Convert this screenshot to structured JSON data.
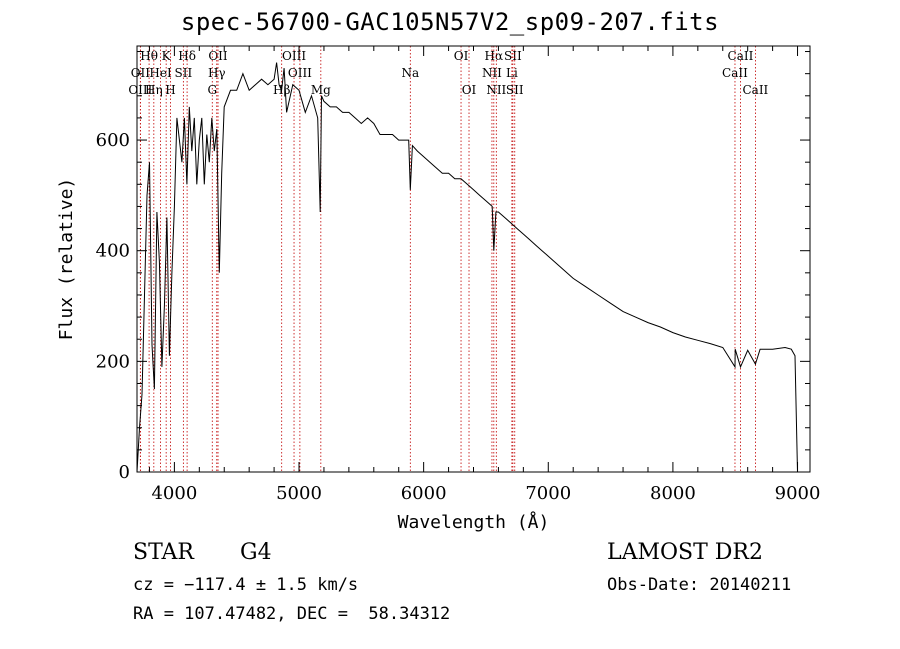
{
  "chart_data": {
    "type": "line",
    "title": "spec-56700-GAC105N57V2_sp09-207.fits",
    "xlabel": "Wavelength (Å)",
    "ylabel": "Flux (relative)",
    "xlim": [
      3700,
      9100
    ],
    "ylim": [
      0,
      770
    ],
    "xticks": [
      4000,
      5000,
      6000,
      7000,
      8000,
      9000
    ],
    "xtick_labels": [
      "4000",
      "5000",
      "6000",
      "7000",
      "8000",
      "9000"
    ],
    "yticks": [
      0,
      200,
      400,
      600
    ],
    "ytick_labels": [
      "0",
      "200",
      "400",
      "600"
    ],
    "grid": false,
    "series": [
      {
        "x": [
          3700,
          3720,
          3740,
          3760,
          3780,
          3800,
          3820,
          3840,
          3860,
          3880,
          3900,
          3920,
          3940,
          3960,
          3980,
          4000,
          4020,
          4040,
          4060,
          4080,
          4100,
          4120,
          4140,
          4160,
          4180,
          4200,
          4220,
          4240,
          4260,
          4280,
          4300,
          4320,
          4340,
          4360,
          4380,
          4400,
          4450,
          4500,
          4550,
          4600,
          4650,
          4700,
          4750,
          4800,
          4820,
          4840,
          4860,
          4880,
          4900,
          4950,
          5000,
          5050,
          5100,
          5150,
          5170,
          5180,
          5200,
          5250,
          5300,
          5350,
          5400,
          5450,
          5500,
          5550,
          5600,
          5650,
          5700,
          5750,
          5800,
          5850,
          5880,
          5893,
          5910,
          5950,
          6000,
          6050,
          6100,
          6150,
          6200,
          6250,
          6300,
          6350,
          6400,
          6450,
          6500,
          6550,
          6563,
          6580,
          6600,
          6650,
          6700,
          6750,
          6800,
          6850,
          6900,
          6950,
          7000,
          7100,
          7200,
          7300,
          7400,
          7500,
          7600,
          7700,
          7800,
          7900,
          8000,
          8100,
          8200,
          8300,
          8400,
          8498,
          8500,
          8542,
          8600,
          8662,
          8700,
          8800,
          8900,
          8950,
          8980,
          9000
        ],
        "y": [
          0,
          80,
          140,
          320,
          500,
          560,
          230,
          150,
          470,
          380,
          190,
          300,
          460,
          210,
          360,
          480,
          640,
          600,
          560,
          640,
          520,
          660,
          580,
          640,
          520,
          600,
          640,
          520,
          610,
          560,
          640,
          580,
          620,
          360,
          540,
          660,
          690,
          690,
          720,
          690,
          700,
          710,
          700,
          710,
          740,
          700,
          690,
          730,
          650,
          700,
          690,
          650,
          680,
          640,
          470,
          680,
          670,
          660,
          660,
          650,
          650,
          640,
          630,
          640,
          630,
          610,
          610,
          610,
          600,
          600,
          600,
          510,
          590,
          580,
          570,
          560,
          550,
          540,
          540,
          530,
          530,
          520,
          510,
          500,
          490,
          480,
          400,
          470,
          470,
          460,
          450,
          440,
          430,
          420,
          410,
          400,
          390,
          370,
          350,
          335,
          320,
          305,
          290,
          280,
          270,
          262,
          252,
          244,
          238,
          232,
          225,
          190,
          222,
          190,
          220,
          195,
          222,
          222,
          225,
          222,
          210,
          0
        ]
      }
    ],
    "line_markers": [
      {
        "name": "Hθ",
        "x": 3797,
        "row": 0
      },
      {
        "name": "K",
        "x": 3934,
        "row": 0
      },
      {
        "name": "Hδ",
        "x": 4102,
        "row": 0
      },
      {
        "name": "OII",
        "x": 4350,
        "row": 0
      },
      {
        "name": "OIII",
        "x": 4960,
        "row": 0
      },
      {
        "name": "OI",
        "x": 6300,
        "row": 0
      },
      {
        "name": "Hα",
        "x": 6563,
        "row": 0
      },
      {
        "name": "SII",
        "x": 6716,
        "row": 0
      },
      {
        "name": "CaII",
        "x": 8542,
        "row": 0
      },
      {
        "name": "OII",
        "x": 3727,
        "row": 1
      },
      {
        "name": "HeI",
        "x": 3889,
        "row": 1
      },
      {
        "name": "SII",
        "x": 4072,
        "row": 1
      },
      {
        "name": "Hγ",
        "x": 4340,
        "row": 1
      },
      {
        "name": "OIII",
        "x": 5007,
        "row": 1
      },
      {
        "name": "Na",
        "x": 5893,
        "row": 1
      },
      {
        "name": "NII",
        "x": 6548,
        "row": 1
      },
      {
        "name": "Li",
        "x": 6708,
        "row": 1
      },
      {
        "name": "CaII",
        "x": 8498,
        "row": 1
      },
      {
        "name": "OIII",
        "x": 3727,
        "row": 2
      },
      {
        "name": "Hη",
        "x": 3835,
        "row": 2
      },
      {
        "name": "H",
        "x": 3969,
        "row": 2
      },
      {
        "name": "G",
        "x": 4304,
        "row": 2
      },
      {
        "name": "Hβ",
        "x": 4861,
        "row": 2
      },
      {
        "name": "Mg",
        "x": 5175,
        "row": 2
      },
      {
        "name": "OI",
        "x": 6364,
        "row": 2
      },
      {
        "name": "NII",
        "x": 6583,
        "row": 2
      },
      {
        "name": "SII",
        "x": 6731,
        "row": 2
      },
      {
        "name": "CaII",
        "x": 8662,
        "row": 2
      }
    ]
  },
  "info": {
    "class": "STAR",
    "subclass": "G4",
    "survey": "LAMOST DR2",
    "cz": "cz = −117.4 ± 1.5 km/s",
    "obs_date": "Obs-Date: 20140211",
    "radec": "RA = 107.47482, DEC =  58.34312"
  }
}
